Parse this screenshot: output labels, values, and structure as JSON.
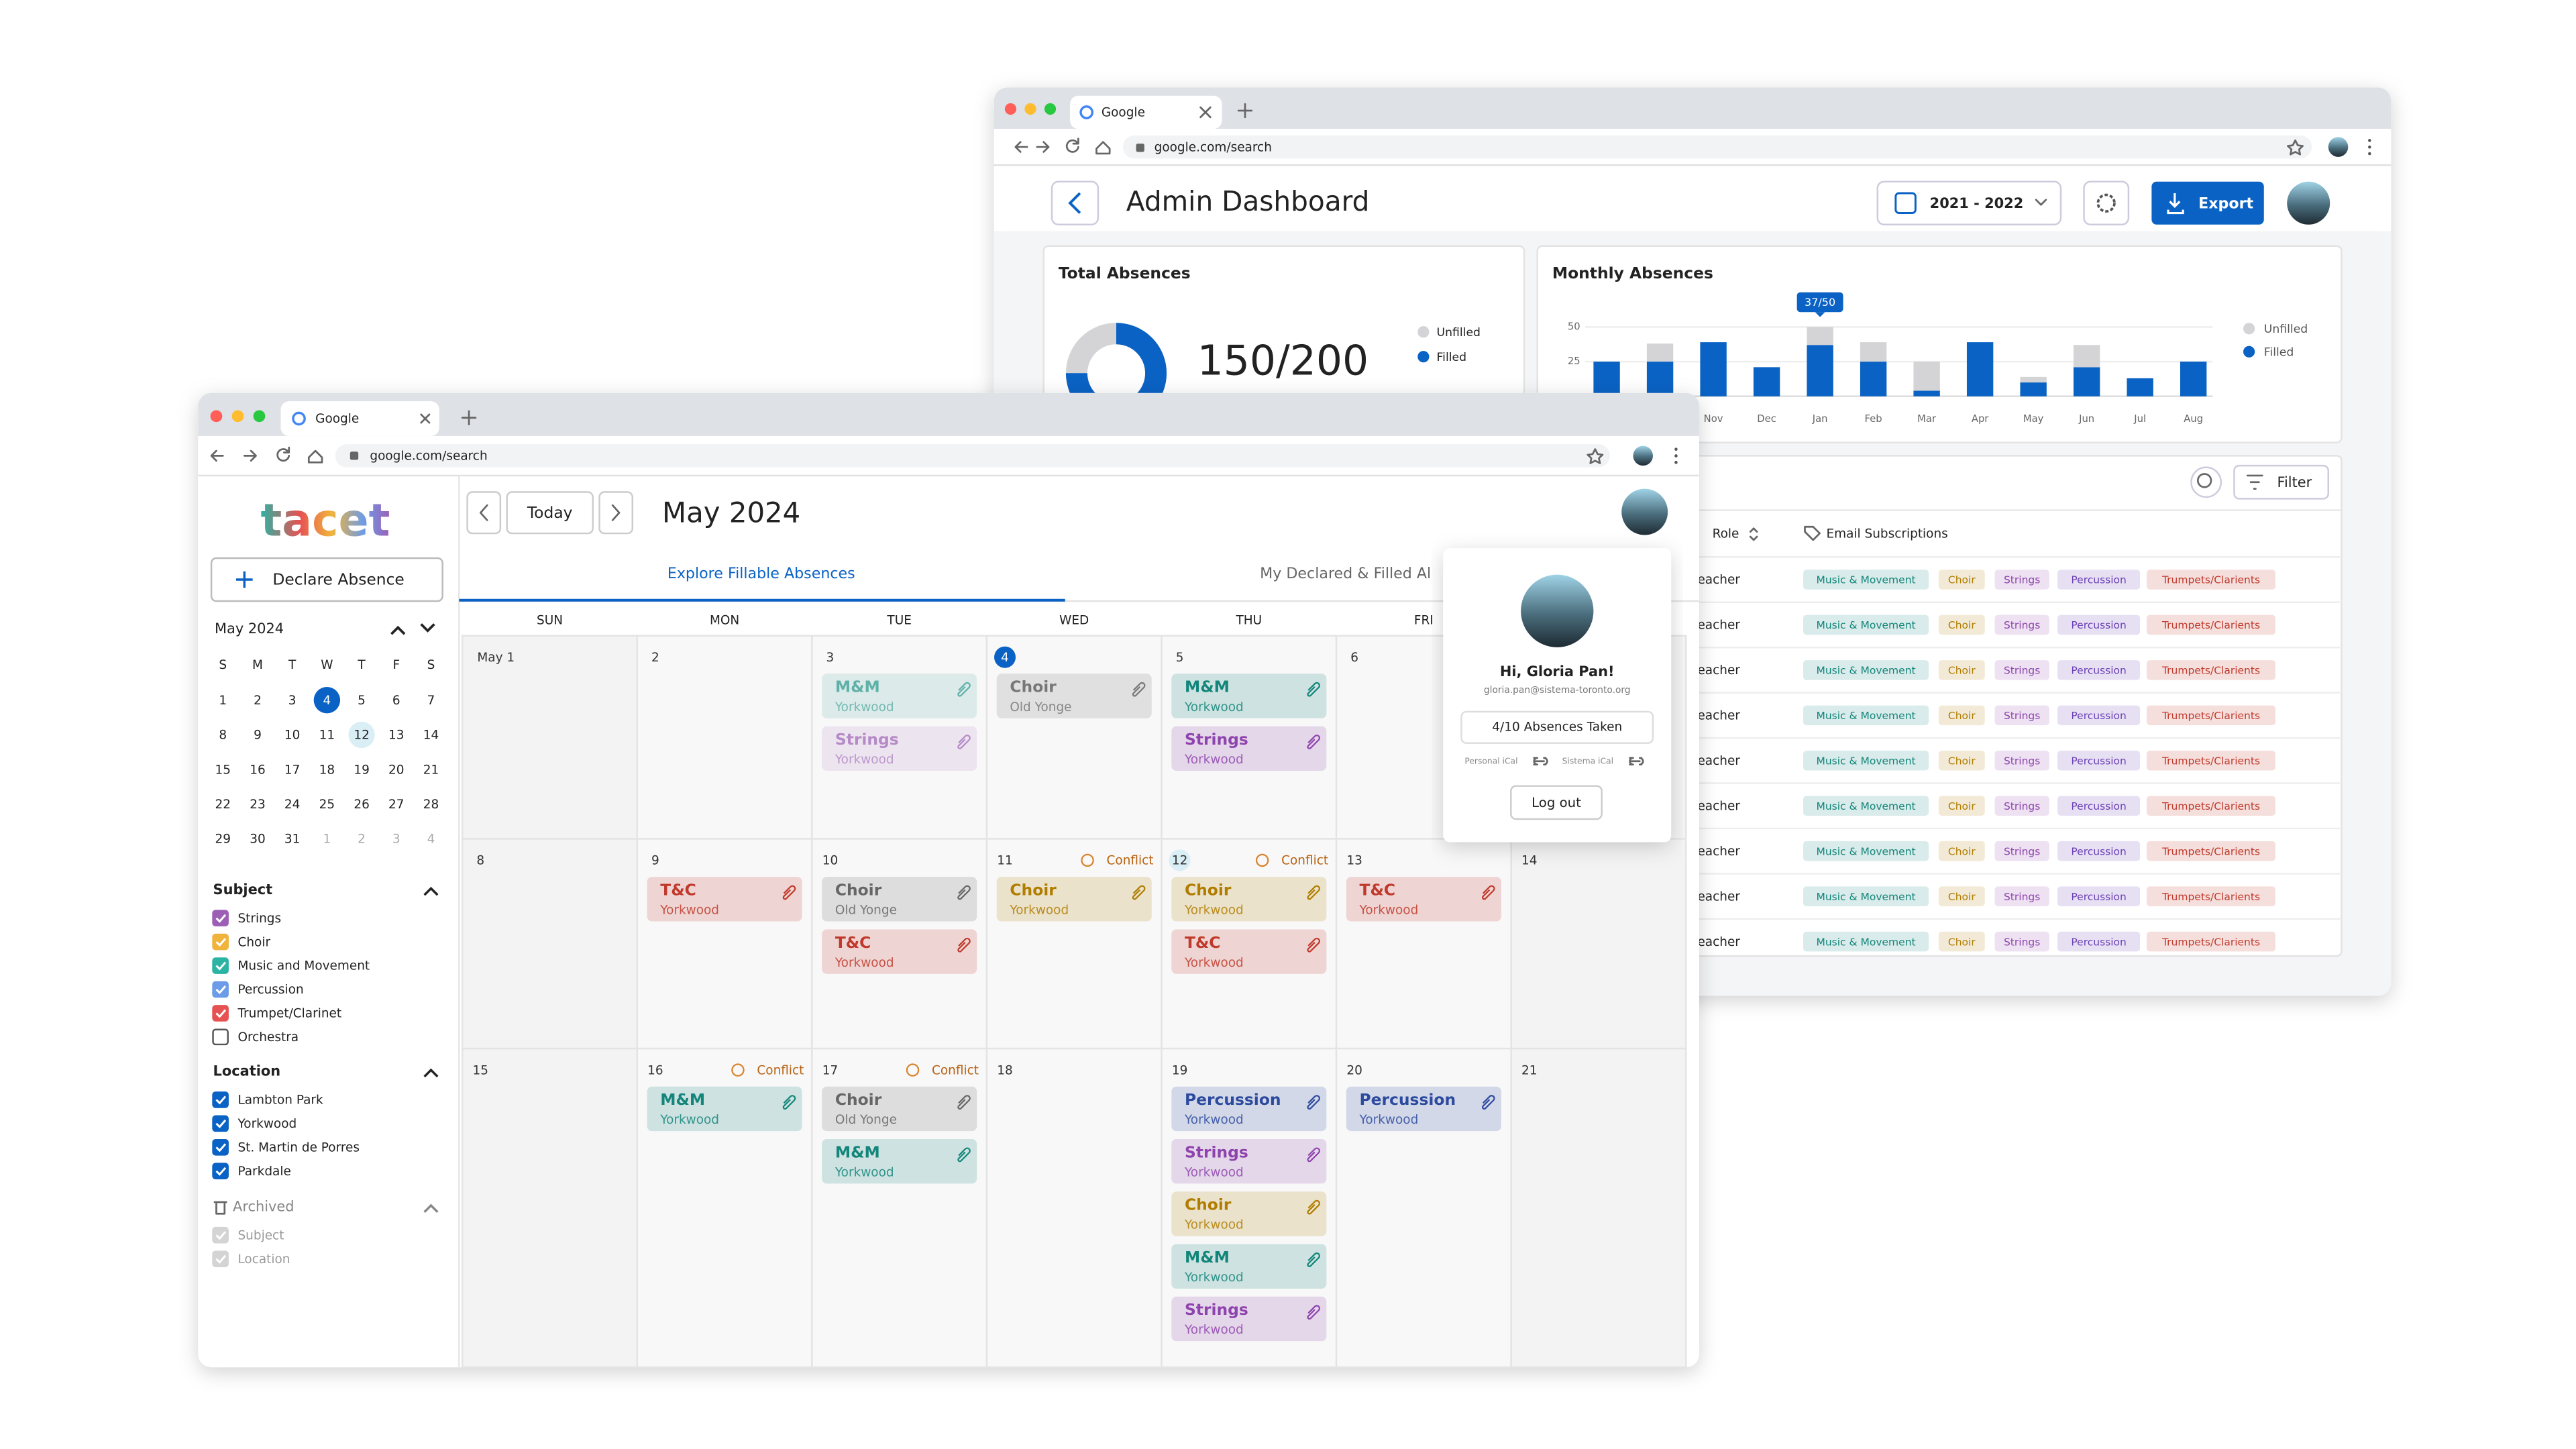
{
  "back_window": {
    "tab": "Google",
    "url": "google.com/search",
    "title": "Admin Dashboard",
    "year": "2021 - 2022",
    "export": "Export",
    "total_absences": {
      "title": "Total Absences",
      "value": "150/200",
      "legend": [
        "Unfilled",
        "Filled"
      ]
    },
    "monthly_absences": {
      "type": "bar",
      "title": "Monthly Absences",
      "categories": [
        null,
        null,
        "Nov",
        "Dec",
        "Jan",
        "Feb",
        "Mar",
        "Apr",
        "May",
        "Jun",
        "Jul",
        "Aug"
      ],
      "series": [
        {
          "name": "Unfilled",
          "color": "#d4d4d6",
          "values": [
            0,
            13,
            0,
            0,
            13,
            14,
            21,
            0,
            4,
            16,
            0,
            0
          ]
        },
        {
          "name": "Filled",
          "color": "#0a62c4",
          "values": [
            25,
            25,
            39,
            21,
            37,
            25,
            4,
            39,
            10,
            21,
            13,
            25
          ]
        }
      ],
      "ylim": [
        0,
        50
      ],
      "yticks": [
        25,
        50
      ],
      "tooltip": "37/50"
    },
    "table": {
      "filter": "Filter",
      "columns": [
        "Role",
        "Email Subscriptions"
      ],
      "tag_colors": [
        "#13857a",
        "#b07d00",
        "#8e44ad",
        "#6a3fb5",
        "#c0392b"
      ],
      "rows": [
        {
          "role": "eacher",
          "subscriptions": [
            "Music & Movement",
            "Choir",
            "Strings",
            "Percussion",
            "Trumpets/Clarients"
          ]
        },
        {
          "role": "eacher",
          "subscriptions": [
            "Music & Movement",
            "Choir",
            "Strings",
            "Percussion",
            "Trumpets/Clarients"
          ]
        },
        {
          "role": "eacher",
          "subscriptions": [
            "Music & Movement",
            "Choir",
            "Strings",
            "Percussion",
            "Trumpets/Clarients"
          ]
        },
        {
          "role": "eacher",
          "subscriptions": [
            "Music & Movement",
            "Choir",
            "Strings",
            "Percussion",
            "Trumpets/Clarients"
          ]
        },
        {
          "role": "eacher",
          "subscriptions": [
            "Music & Movement",
            "Choir",
            "Strings",
            "Percussion",
            "Trumpets/Clarients"
          ]
        },
        {
          "role": "eacher",
          "subscriptions": [
            "Music & Movement",
            "Choir",
            "Strings",
            "Percussion",
            "Trumpets/Clarients"
          ]
        },
        {
          "role": "eacher",
          "subscriptions": [
            "Music & Movement",
            "Choir",
            "Strings",
            "Percussion",
            "Trumpets/Clarients"
          ]
        },
        {
          "role": "eacher",
          "subscriptions": [
            "Music & Movement",
            "Choir",
            "Strings",
            "Percussion",
            "Trumpets/Clarients"
          ]
        },
        {
          "role": "eacher",
          "subscriptions": [
            "Music & Movement",
            "Choir",
            "Strings",
            "Percussion",
            "Trumpets/Clarients"
          ]
        }
      ]
    }
  },
  "front_window": {
    "tab": "Google",
    "url": "google.com/search",
    "logo": "tacet",
    "declare": "Declare Absence",
    "mini_calendar": {
      "title": "May 2024",
      "weekdays": [
        "S",
        "M",
        "T",
        "W",
        "T",
        "F",
        "S"
      ],
      "dates": [
        1,
        2,
        3,
        4,
        5,
        6,
        7,
        8,
        9,
        10,
        11,
        12,
        13,
        14,
        15,
        16,
        17,
        18,
        19,
        20,
        21,
        22,
        23,
        24,
        25,
        26,
        27,
        28,
        29,
        30,
        31,
        1,
        2,
        3,
        4
      ]
    },
    "filters": [
      {
        "title": "Subject",
        "items": [
          {
            "label": "Strings",
            "checked": true,
            "color": "#9c5fb5"
          },
          {
            "label": "Choir",
            "checked": true,
            "color": "#f0b43c"
          },
          {
            "label": "Music and Movement",
            "checked": true,
            "color": "#2bb3a3"
          },
          {
            "label": "Percussion",
            "checked": true,
            "color": "#6c9be8"
          },
          {
            "label": "Trumpet/Clarinet",
            "checked": true,
            "color": "#e65252"
          },
          {
            "label": "Orchestra",
            "checked": false,
            "color": "#555555"
          }
        ]
      },
      {
        "title": "Location",
        "items": [
          {
            "label": "Lambton Park",
            "checked": true,
            "color": "#0a62c4"
          },
          {
            "label": "Yorkwood",
            "checked": true,
            "color": "#0a62c4"
          },
          {
            "label": "St. Martin de Porres",
            "checked": true,
            "color": "#0a62c4"
          },
          {
            "label": "Parkdale",
            "checked": true,
            "color": "#0a62c4"
          }
        ]
      },
      {
        "title": "Archived",
        "items": [
          {
            "label": "Subject",
            "checked": true,
            "color": "#d4d4d4"
          },
          {
            "label": "Location",
            "checked": true,
            "color": "#d4d4d4"
          }
        ]
      }
    ],
    "today": "Today",
    "month": "May 2024",
    "tabs": [
      "Explore Fillable Absences",
      "My Declared & Filled Al"
    ],
    "weekdays": [
      "SUN",
      "MON",
      "TUE",
      "WED",
      "THU",
      "FRI"
    ],
    "weeks": [
      [
        {
          "day": "May 1",
          "events": []
        },
        {
          "day": 2,
          "events": []
        },
        {
          "day": 3,
          "events": [
            {
              "title": "M&M",
              "location": "Yorkwood",
              "color": "#5fb0a8"
            },
            {
              "title": "Strings",
              "location": "Yorkwood",
              "color": "#b58ac7"
            }
          ]
        },
        {
          "day": 4,
          "events": [
            {
              "title": "Choir",
              "location": "Old Yonge",
              "color": "#777777"
            }
          ]
        },
        {
          "day": 5,
          "events": [
            {
              "title": "M&M",
              "location": "Yorkwood",
              "color": "#13857a"
            },
            {
              "title": "Strings",
              "location": "Yorkwood",
              "color": "#8e44ad"
            }
          ]
        },
        {
          "day": 6,
          "events": []
        }
      ],
      [
        {
          "day": 8,
          "events": []
        },
        {
          "day": 9,
          "events": [
            {
              "title": "T&C",
              "location": "Yorkwood",
              "color": "#c0392b"
            }
          ]
        },
        {
          "day": 10,
          "events": [
            {
              "title": "Choir",
              "location": "Old Yonge",
              "color": "#666666"
            },
            {
              "title": "T&C",
              "location": "Yorkwood",
              "color": "#c0392b"
            }
          ]
        },
        {
          "day": 11,
          "badge": "Conflict",
          "events": [
            {
              "title": "Choir",
              "location": "Yorkwood",
              "color": "#b07d00"
            }
          ]
        },
        {
          "day": 12,
          "badge": "Conflict",
          "events": [
            {
              "title": "Choir",
              "location": "Yorkwood",
              "color": "#b07d00"
            },
            {
              "title": "T&C",
              "location": "Yorkwood",
              "color": "#c0392b"
            }
          ]
        },
        {
          "day": 13,
          "events": [
            {
              "title": "T&C",
              "location": "Yorkwood",
              "color": "#c0392b"
            }
          ]
        },
        {
          "day": 14,
          "events": []
        }
      ],
      [
        {
          "day": 15,
          "events": []
        },
        {
          "day": 16,
          "badge": "Conflict",
          "events": [
            {
              "title": "M&M",
              "location": "Yorkwood",
              "color": "#13857a"
            }
          ]
        },
        {
          "day": 17,
          "badge": "Conflict",
          "events": [
            {
              "title": "Choir",
              "location": "Old Yonge",
              "color": "#666666"
            },
            {
              "title": "M&M",
              "location": "Yorkwood",
              "color": "#13857a"
            }
          ]
        },
        {
          "day": 18,
          "events": []
        },
        {
          "day": 19,
          "events": [
            {
              "title": "Percussion",
              "location": "Yorkwood",
              "color": "#2c4a9e"
            },
            {
              "title": "Strings",
              "location": "Yorkwood",
              "color": "#8e44ad"
            },
            {
              "title": "Choir",
              "location": "Yorkwood",
              "color": "#b07d00"
            },
            {
              "title": "M&M",
              "location": "Yorkwood",
              "color": "#13857a"
            },
            {
              "title": "Strings",
              "location": "Yorkwood",
              "color": "#8e44ad"
            }
          ]
        },
        {
          "day": 20,
          "events": [
            {
              "title": "Percussion",
              "location": "Yorkwood",
              "color": "#2c4a9e"
            }
          ]
        },
        {
          "day": 21,
          "events": []
        }
      ]
    ],
    "popover": {
      "greeting": "Hi, Gloria Pan!",
      "email": "gloria.pan@sistema-toronto.org",
      "absences": "4/10 Absences Taken",
      "personal": "Personal iCal",
      "sistema": "Sistema iCal",
      "logout": "Log out"
    }
  }
}
